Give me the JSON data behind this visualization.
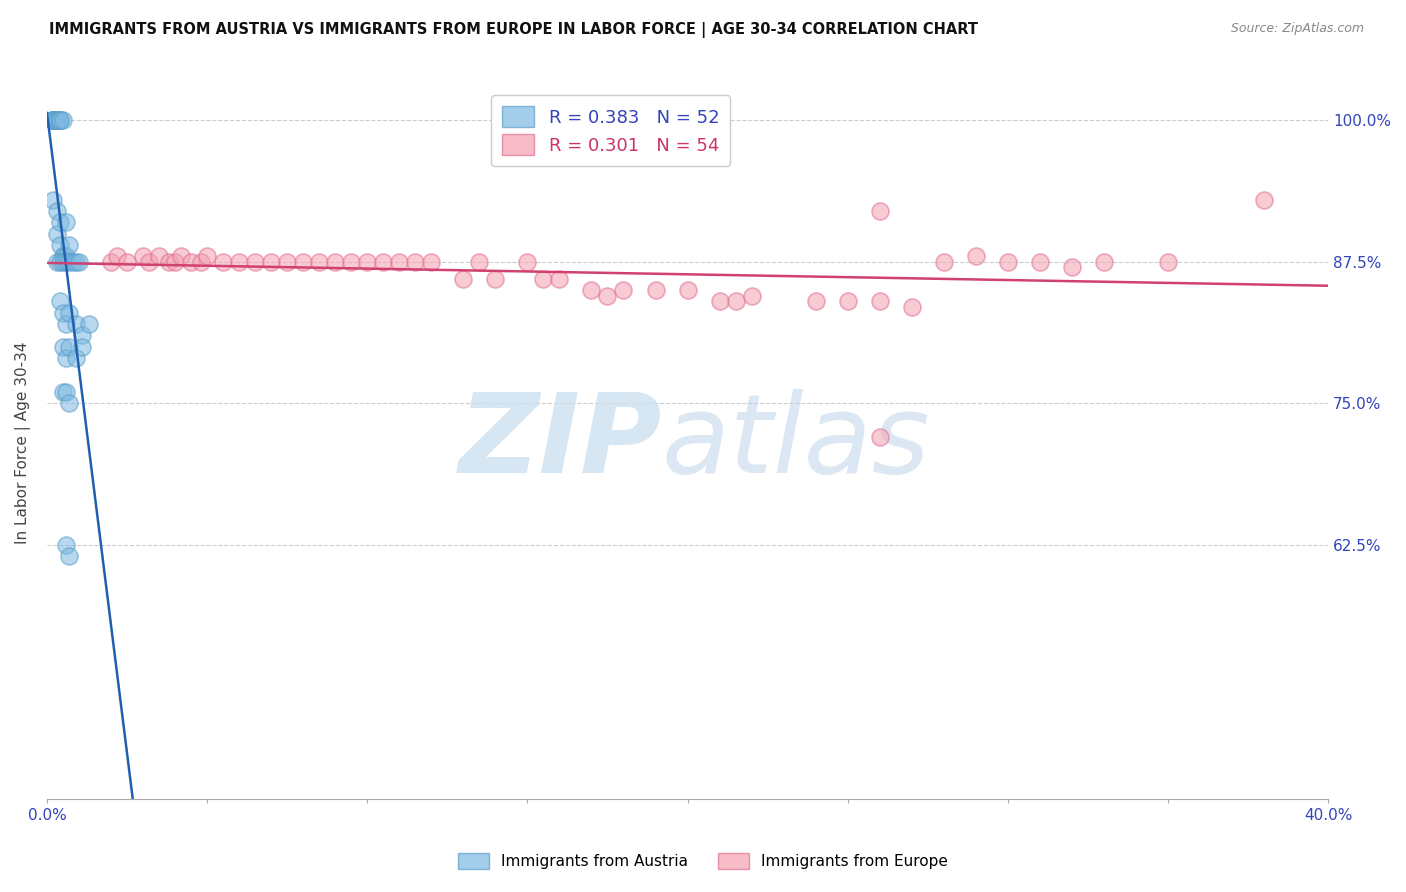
{
  "title": "IMMIGRANTS FROM AUSTRIA VS IMMIGRANTS FROM EUROPE IN LABOR FORCE | AGE 30-34 CORRELATION CHART",
  "source": "Source: ZipAtlas.com",
  "ylabel": "In Labor Force | Age 30-34",
  "xmin": 0.0,
  "xmax": 0.4,
  "ymin": 0.4,
  "ymax": 1.03,
  "yticks": [
    0.625,
    0.75,
    0.875,
    1.0
  ],
  "ytick_labels": [
    "62.5%",
    "75.0%",
    "87.5%",
    "100.0%"
  ],
  "xticks": [
    0.0,
    0.05,
    0.1,
    0.15,
    0.2,
    0.25,
    0.3,
    0.35,
    0.4
  ],
  "xtick_labels": [
    "0.0%",
    "",
    "",
    "",
    "",
    "",
    "",
    "",
    "40.0%"
  ],
  "legend_austria": "Immigrants from Austria",
  "legend_europe": "Immigrants from Europe",
  "R_austria": 0.383,
  "N_austria": 52,
  "R_europe": 0.301,
  "N_europe": 54,
  "austria_color": "#7db9e0",
  "austria_edge_color": "#5a9ec9",
  "europe_color": "#f4a0b0",
  "europe_edge_color": "#e07090",
  "austria_line_color": "#2060b0",
  "europe_line_color": "#d04070",
  "austria_x": [
    0.002,
    0.002,
    0.002,
    0.002,
    0.002,
    0.002,
    0.002,
    0.002,
    0.002,
    0.003,
    0.003,
    0.003,
    0.004,
    0.004,
    0.004,
    0.004,
    0.005,
    0.002,
    0.003,
    0.003,
    0.004,
    0.004,
    0.005,
    0.005,
    0.006,
    0.006,
    0.007,
    0.003,
    0.004,
    0.005,
    0.006,
    0.007,
    0.008,
    0.009,
    0.01,
    0.004,
    0.005,
    0.006,
    0.007,
    0.009,
    0.011,
    0.013,
    0.005,
    0.006,
    0.007,
    0.009,
    0.011,
    0.005,
    0.006,
    0.006,
    0.007,
    0.007
  ],
  "austria_y": [
    1.0,
    1.0,
    1.0,
    1.0,
    1.0,
    1.0,
    1.0,
    1.0,
    1.0,
    1.0,
    1.0,
    1.0,
    1.0,
    1.0,
    1.0,
    1.0,
    1.0,
    0.93,
    0.92,
    0.9,
    0.91,
    0.89,
    0.88,
    0.88,
    0.91,
    0.88,
    0.89,
    0.875,
    0.875,
    0.875,
    0.875,
    0.875,
    0.875,
    0.875,
    0.875,
    0.84,
    0.83,
    0.82,
    0.83,
    0.82,
    0.81,
    0.82,
    0.8,
    0.79,
    0.8,
    0.79,
    0.8,
    0.76,
    0.76,
    0.625,
    0.615,
    0.75
  ],
  "europe_x": [
    0.02,
    0.022,
    0.025,
    0.03,
    0.032,
    0.035,
    0.038,
    0.04,
    0.042,
    0.045,
    0.048,
    0.05,
    0.055,
    0.06,
    0.065,
    0.07,
    0.075,
    0.08,
    0.085,
    0.09,
    0.095,
    0.1,
    0.105,
    0.11,
    0.115,
    0.12,
    0.13,
    0.135,
    0.14,
    0.15,
    0.155,
    0.16,
    0.17,
    0.175,
    0.18,
    0.19,
    0.2,
    0.21,
    0.215,
    0.22,
    0.24,
    0.25,
    0.26,
    0.27,
    0.28,
    0.3,
    0.31,
    0.32,
    0.33,
    0.35,
    0.26,
    0.29,
    0.38,
    0.26
  ],
  "europe_y": [
    0.875,
    0.88,
    0.875,
    0.88,
    0.875,
    0.88,
    0.875,
    0.875,
    0.88,
    0.875,
    0.875,
    0.88,
    0.875,
    0.875,
    0.875,
    0.875,
    0.875,
    0.875,
    0.875,
    0.875,
    0.875,
    0.875,
    0.875,
    0.875,
    0.875,
    0.875,
    0.86,
    0.875,
    0.86,
    0.875,
    0.86,
    0.86,
    0.85,
    0.845,
    0.85,
    0.85,
    0.85,
    0.84,
    0.84,
    0.845,
    0.84,
    0.84,
    0.84,
    0.835,
    0.875,
    0.875,
    0.875,
    0.87,
    0.875,
    0.875,
    0.92,
    0.88,
    0.93,
    0.72
  ]
}
